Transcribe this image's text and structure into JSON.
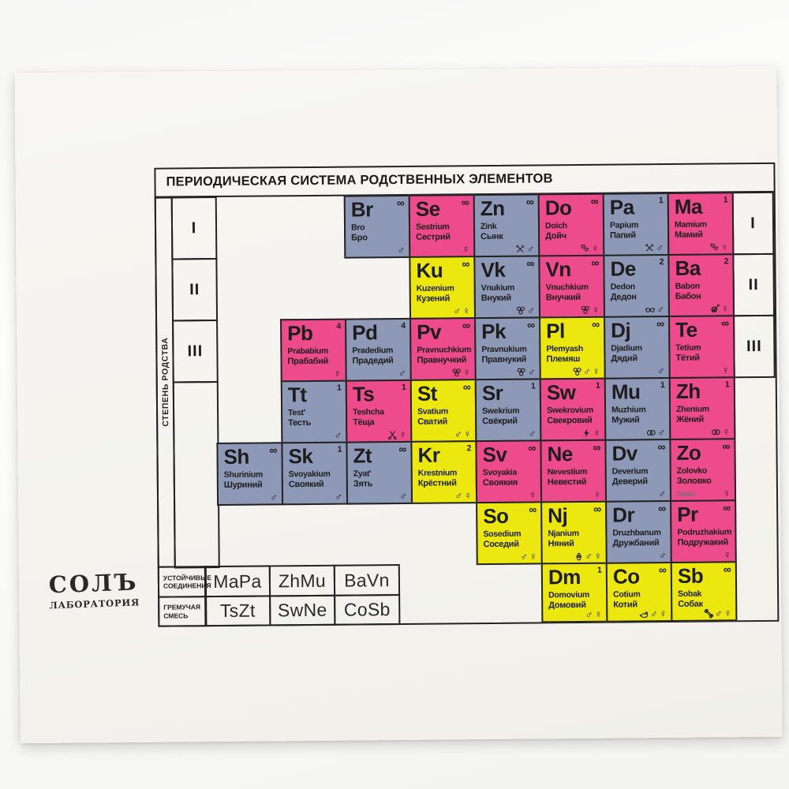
{
  "title": "ПЕРИОДИЧЕСКАЯ СИСТЕМА РОДСТВЕННЫХ ЭЛЕМЕНТОВ",
  "axis_label": "СТЕПЕНЬ РОДСТВА",
  "period_labels_left": [
    "I",
    "II",
    "III"
  ],
  "period_labels_right": [
    "I",
    "II",
    "III"
  ],
  "colors": {
    "blue": "#8e99b7",
    "pink": "#ee4b8c",
    "yellow": "#ece70f",
    "card": "#f4f3ee",
    "border": "#232323"
  },
  "icon_glyphs": {
    "male": "♂",
    "female": "♀",
    "tools": "crossed-hammer-and-wrench (svg)",
    "hearts": "two-hearts (svg)",
    "balls": "three-balls (svg)",
    "glasses": "eyeglasses (svg)",
    "yarn": "yarn-ball-with-needle (svg)",
    "scissors": "scissors (svg)",
    "lightning": "lightning-bolt (svg)",
    "rings": "wedding-rings (svg)",
    "pacifier": "pacifier (svg)",
    "mouse": "mouse (svg)",
    "bone": "dog-bone (svg)"
  },
  "elements": [
    {
      "row": 1,
      "col": 3,
      "symbol": "Br",
      "latin": "Bro",
      "russian": "Бро",
      "color": "blue",
      "count": "∞",
      "icons": [
        "male"
      ]
    },
    {
      "row": 1,
      "col": 4,
      "symbol": "Se",
      "latin": "Sestrium",
      "russian": "Сестрий",
      "color": "pink",
      "count": "∞",
      "icons": [
        "female"
      ]
    },
    {
      "row": 1,
      "col": 5,
      "symbol": "Zn",
      "latin": "Zink",
      "russian": "Сынк",
      "color": "blue",
      "count": "∞",
      "icons": [
        "tools",
        "male"
      ]
    },
    {
      "row": 1,
      "col": 6,
      "symbol": "Do",
      "latin": "Doich",
      "russian": "Дойч",
      "color": "pink",
      "count": "∞",
      "icons": [
        "hearts",
        "female"
      ]
    },
    {
      "row": 1,
      "col": 7,
      "symbol": "Pa",
      "latin": "Papium",
      "russian": "Папий",
      "color": "blue",
      "count": "1",
      "icons": [
        "tools",
        "male"
      ]
    },
    {
      "row": 1,
      "col": 8,
      "symbol": "Ma",
      "latin": "Mamium",
      "russian": "Мамий",
      "color": "pink",
      "count": "1",
      "icons": [
        "hearts",
        "female"
      ]
    },
    {
      "row": 2,
      "col": 4,
      "symbol": "Ku",
      "latin": "Kuzenium",
      "russian": "Кузений",
      "color": "yellow",
      "count": "∞",
      "icons": [
        "male",
        "female"
      ]
    },
    {
      "row": 2,
      "col": 5,
      "symbol": "Vk",
      "latin": "Vnukium",
      "russian": "Внукий",
      "color": "blue",
      "count": "∞",
      "icons": [
        "balls",
        "male"
      ]
    },
    {
      "row": 2,
      "col": 6,
      "symbol": "Vn",
      "latin": "Vnuchkium",
      "russian": "Внучкий",
      "color": "pink",
      "count": "∞",
      "icons": [
        "balls",
        "female"
      ]
    },
    {
      "row": 2,
      "col": 7,
      "symbol": "De",
      "latin": "Dedon",
      "russian": "Дедон",
      "color": "blue",
      "count": "2",
      "icons": [
        "glasses",
        "male"
      ]
    },
    {
      "row": 2,
      "col": 8,
      "symbol": "Ba",
      "latin": "Babon",
      "russian": "Бабон",
      "color": "pink",
      "count": "2",
      "icons": [
        "yarn",
        "female"
      ]
    },
    {
      "row": 3,
      "col": 2,
      "symbol": "Pb",
      "latin": "Prababium",
      "russian": "Прабабий",
      "color": "pink",
      "count": "4",
      "icons": [
        "female"
      ]
    },
    {
      "row": 3,
      "col": 3,
      "symbol": "Pd",
      "latin": "Pradedium",
      "russian": "Прадедий",
      "color": "blue",
      "count": "4",
      "icons": [
        "male"
      ]
    },
    {
      "row": 3,
      "col": 4,
      "symbol": "Pv",
      "latin": "Pravnuchkium",
      "russian": "Правнучкий",
      "color": "pink",
      "count": "∞",
      "icons": [
        "balls",
        "female"
      ]
    },
    {
      "row": 3,
      "col": 5,
      "symbol": "Pk",
      "latin": "Pravnukium",
      "russian": "Правнукий",
      "color": "blue",
      "count": "∞",
      "icons": [
        "balls",
        "male"
      ]
    },
    {
      "row": 3,
      "col": 6,
      "symbol": "Pl",
      "latin": "Plemyash",
      "russian": "Племяш",
      "color": "yellow",
      "count": "∞",
      "icons": [
        "balls",
        "male",
        "female"
      ]
    },
    {
      "row": 3,
      "col": 7,
      "symbol": "Dj",
      "latin": "Djadium",
      "russian": "Дядий",
      "color": "blue",
      "count": "∞",
      "icons": [
        "male"
      ]
    },
    {
      "row": 3,
      "col": 8,
      "symbol": "Te",
      "latin": "Tetium",
      "russian": "Тётий",
      "color": "pink",
      "count": "∞",
      "icons": [
        "female"
      ]
    },
    {
      "row": 4,
      "col": 2,
      "symbol": "Tt",
      "latin": "Test'",
      "russian": "Тесть",
      "color": "blue",
      "count": "1",
      "icons": [
        "male"
      ]
    },
    {
      "row": 4,
      "col": 3,
      "symbol": "Ts",
      "latin": "Teshcha",
      "russian": "Тёща",
      "color": "pink",
      "count": "1",
      "icons": [
        "scissors",
        "female"
      ]
    },
    {
      "row": 4,
      "col": 4,
      "symbol": "St",
      "latin": "Svatium",
      "russian": "Сватий",
      "color": "yellow",
      "count": "∞",
      "icons": [
        "male",
        "female"
      ]
    },
    {
      "row": 4,
      "col": 5,
      "symbol": "Sr",
      "latin": "Swekrium",
      "russian": "Свёкрий",
      "color": "blue",
      "count": "1",
      "icons": [
        "male"
      ]
    },
    {
      "row": 4,
      "col": 6,
      "symbol": "Sw",
      "latin": "Swekrovium",
      "russian": "Свекровий",
      "color": "pink",
      "count": "1",
      "icons": [
        "lightning",
        "female"
      ]
    },
    {
      "row": 4,
      "col": 7,
      "symbol": "Mu",
      "latin": "Muzhium",
      "russian": "Мужий",
      "color": "blue",
      "count": "1",
      "icons": [
        "rings",
        "male"
      ]
    },
    {
      "row": 4,
      "col": 8,
      "symbol": "Zh",
      "latin": "Zhenium",
      "russian": "Жёний",
      "color": "pink",
      "count": "1",
      "icons": [
        "rings",
        "female"
      ]
    },
    {
      "row": 5,
      "col": 1,
      "symbol": "Sh",
      "latin": "Shurinium",
      "russian": "Шуриний",
      "color": "blue",
      "count": "∞",
      "icons": [
        "male"
      ]
    },
    {
      "row": 5,
      "col": 2,
      "symbol": "Sk",
      "latin": "Svoyakium",
      "russian": "Своякий",
      "color": "blue",
      "count": "1",
      "icons": [
        "male"
      ]
    },
    {
      "row": 5,
      "col": 3,
      "symbol": "Zt",
      "latin": "Zyat'",
      "russian": "Зять",
      "color": "blue",
      "count": "∞",
      "icons": [
        "male"
      ]
    },
    {
      "row": 5,
      "col": 4,
      "symbol": "Kr",
      "latin": "Krestnium",
      "russian": "Крёстний",
      "color": "yellow",
      "count": "2",
      "icons": [
        "male",
        "female"
      ]
    },
    {
      "row": 5,
      "col": 5,
      "symbol": "Sv",
      "latin": "Svoyakia",
      "russian": "Своякия",
      "color": "pink",
      "count": "∞",
      "icons": [
        "female"
      ]
    },
    {
      "row": 5,
      "col": 6,
      "symbol": "Ne",
      "latin": "Nevestium",
      "russian": "Невестий",
      "color": "pink",
      "count": "∞",
      "icons": [
        "female"
      ]
    },
    {
      "row": 5,
      "col": 7,
      "symbol": "Dv",
      "latin": "Deverium",
      "russian": "Деверий",
      "color": "blue",
      "count": "∞",
      "icons": [
        "male"
      ]
    },
    {
      "row": 5,
      "col": 8,
      "symbol": "Zo",
      "latin": "Zolovko",
      "russian": "Золовко",
      "color": "pink",
      "count": "∞",
      "icons": [
        "female"
      ],
      "note": "SeMu"
    },
    {
      "row": 6,
      "col": 5,
      "symbol": "So",
      "latin": "Sosedium",
      "russian": "Соседий",
      "color": "yellow",
      "count": "∞",
      "icons": [
        "male",
        "female"
      ]
    },
    {
      "row": 6,
      "col": 6,
      "symbol": "Nj",
      "latin": "Njanium",
      "russian": "Няний",
      "color": "yellow",
      "count": "∞",
      "icons": [
        "pacifier",
        "male",
        "female"
      ]
    },
    {
      "row": 6,
      "col": 7,
      "symbol": "Dr",
      "latin": "Druzhbanum",
      "russian": "Дружбаний",
      "color": "blue",
      "count": "∞",
      "icons": [
        "male"
      ]
    },
    {
      "row": 6,
      "col": 8,
      "symbol": "Pr",
      "latin": "Podruzhakium",
      "russian": "Подружакий",
      "color": "pink",
      "count": "∞",
      "icons": [
        "female"
      ]
    },
    {
      "row": 7,
      "col": 6,
      "symbol": "Dm",
      "latin": "Domovium",
      "russian": "Домовий",
      "color": "yellow",
      "count": "1",
      "icons": [
        "male",
        "female"
      ]
    },
    {
      "row": 7,
      "col": 7,
      "symbol": "Co",
      "latin": "Cotium",
      "russian": "Котий",
      "color": "yellow",
      "count": "∞",
      "icons": [
        "mouse",
        "male",
        "female"
      ]
    },
    {
      "row": 7,
      "col": 8,
      "symbol": "Sb",
      "latin": "Sobak",
      "russian": "Собак",
      "color": "yellow",
      "count": "∞",
      "icons": [
        "bone",
        "male",
        "female"
      ]
    }
  ],
  "compounds": {
    "rows": [
      {
        "label": "УСТОЙЧИВЫЕ СОЕДИНЕНИЯ",
        "values": [
          "MaPa",
          "ZhMu",
          "BaVn"
        ]
      },
      {
        "label": "ГРЕМУЧАЯ СМЕСЬ",
        "values": [
          "TsZt",
          "SwNe",
          "CoSb"
        ]
      }
    ]
  },
  "logo": {
    "name": "СОЛЪ",
    "subtitle": "ЛАБОРАТОРИЯ"
  }
}
